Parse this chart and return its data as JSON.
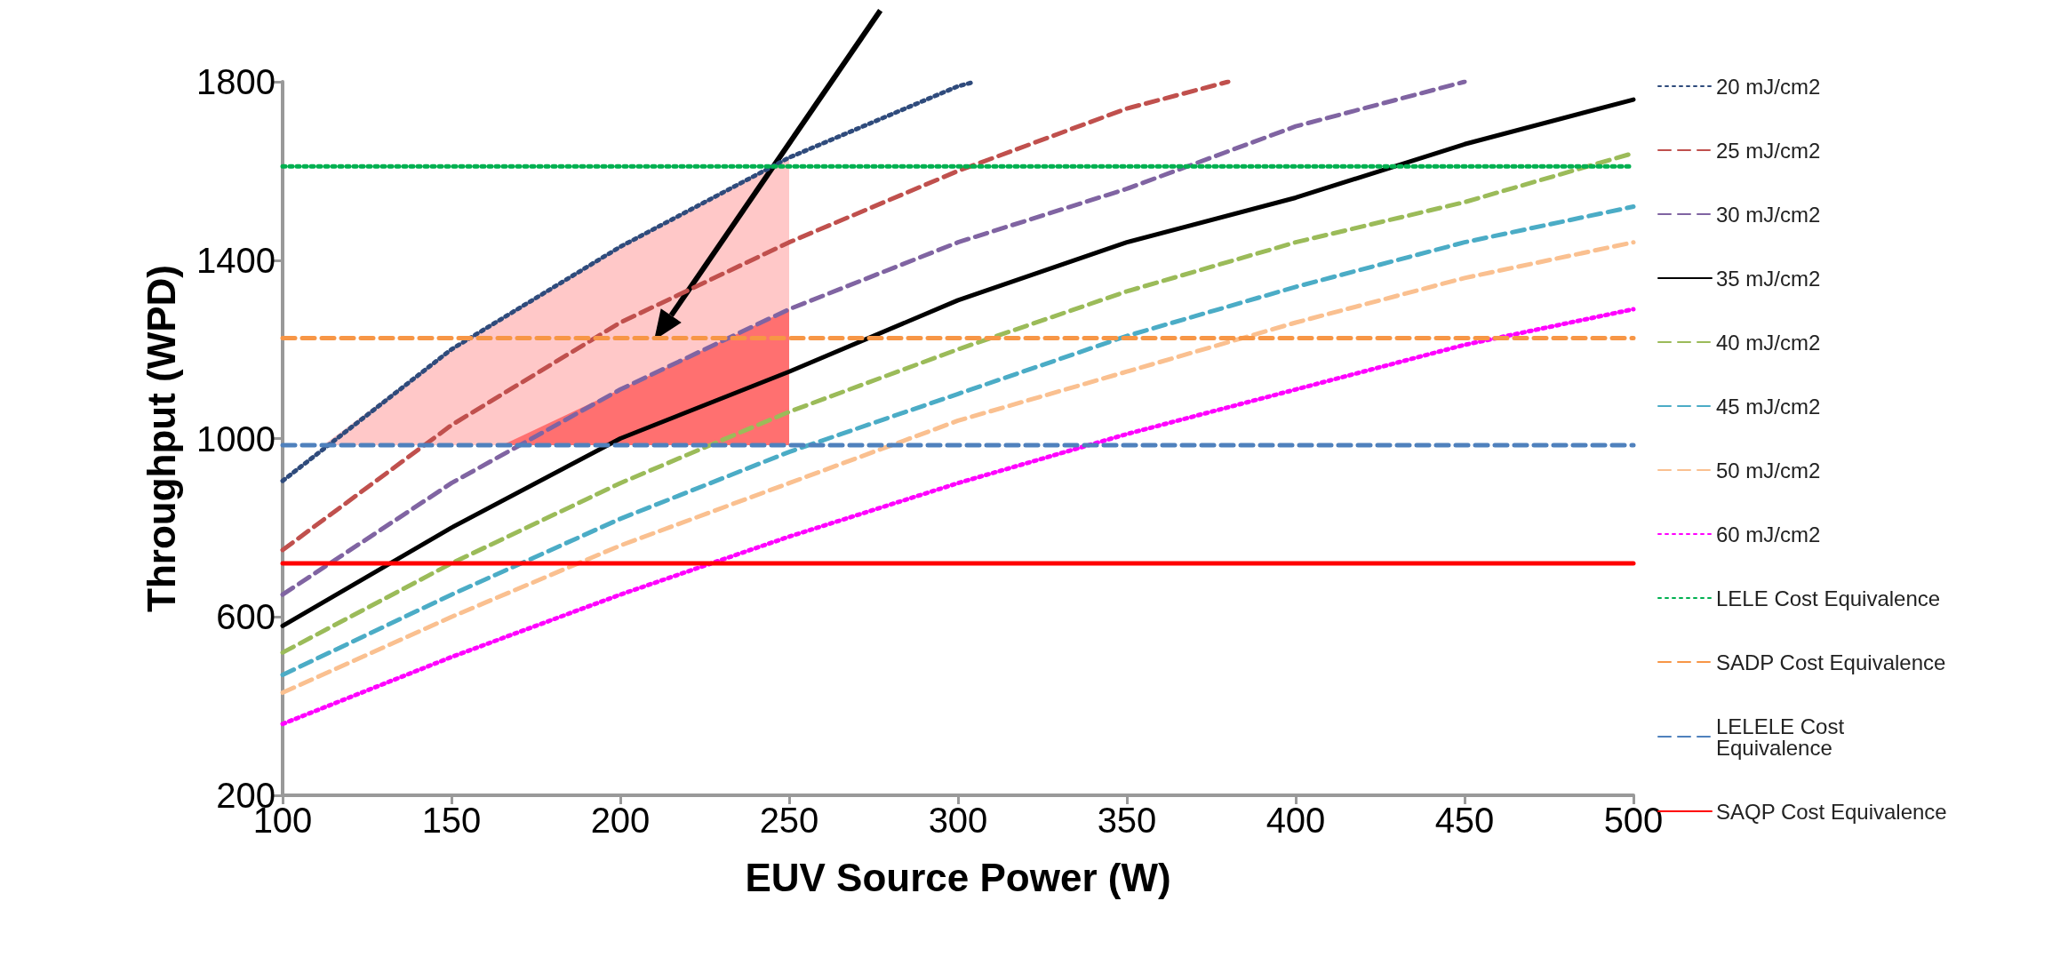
{
  "chart_data": {
    "type": "line",
    "xlabel": "EUV Source Power (W)",
    "ylabel": "Throughput (WPD)",
    "xlim": [
      100,
      500
    ],
    "xticks": [
      100,
      150,
      200,
      250,
      300,
      350,
      400,
      450,
      500
    ],
    "ylim": [
      200,
      1800
    ],
    "yticks": [
      200,
      600,
      1000,
      1400,
      1800
    ],
    "grid": false,
    "legend": "right",
    "marker": "none",
    "series": [
      {
        "name": "20 mJ/cm2",
        "color": "#2f4b7c",
        "line_style": "dotted",
        "x": [
          100,
          150,
          200,
          250,
          300,
          305
        ],
        "values": [
          905,
          1200,
          1430,
          1630,
          1790,
          1800
        ]
      },
      {
        "name": "25 mJ/cm2",
        "color": "#c0504d",
        "line_style": "dashed",
        "x": [
          100,
          150,
          200,
          250,
          300,
          350,
          380
        ],
        "values": [
          750,
          1030,
          1260,
          1440,
          1600,
          1740,
          1800
        ]
      },
      {
        "name": "30 mJ/cm2",
        "color": "#8064a2",
        "line_style": "dashed",
        "x": [
          100,
          150,
          200,
          250,
          300,
          350,
          400,
          450
        ],
        "values": [
          650,
          900,
          1110,
          1290,
          1440,
          1560,
          1700,
          1800
        ]
      },
      {
        "name": "35 mJ/cm2",
        "color": "#000000",
        "line_style": "solid",
        "x": [
          100,
          150,
          200,
          250,
          300,
          350,
          400,
          450,
          500
        ],
        "values": [
          580,
          800,
          1000,
          1150,
          1310,
          1440,
          1540,
          1660,
          1760
        ]
      },
      {
        "name": "40 mJ/cm2",
        "color": "#9bbb59",
        "line_style": "dashed",
        "x": [
          100,
          150,
          200,
          250,
          300,
          350,
          400,
          450,
          500
        ],
        "values": [
          520,
          720,
          900,
          1060,
          1200,
          1330,
          1440,
          1530,
          1640
        ]
      },
      {
        "name": "45 mJ/cm2",
        "color": "#4bacc6",
        "line_style": "dashed",
        "x": [
          100,
          150,
          200,
          250,
          300,
          350,
          400,
          450,
          500
        ],
        "values": [
          470,
          650,
          820,
          970,
          1100,
          1230,
          1340,
          1440,
          1520
        ]
      },
      {
        "name": "50 mJ/cm2",
        "color": "#fac090",
        "line_style": "dashed",
        "x": [
          100,
          150,
          200,
          250,
          300,
          350,
          400,
          450,
          500
        ],
        "values": [
          430,
          600,
          760,
          900,
          1040,
          1150,
          1260,
          1360,
          1440
        ]
      },
      {
        "name": "60 mJ/cm2",
        "color": "#ff00ff",
        "line_style": "dotted",
        "x": [
          100,
          150,
          200,
          250,
          300,
          350,
          400,
          450,
          500
        ],
        "values": [
          360,
          510,
          650,
          780,
          900,
          1010,
          1110,
          1210,
          1290
        ]
      },
      {
        "name": "LELE Cost Equivalence",
        "color": "#00b050",
        "line_style": "dotted",
        "x": [
          100,
          500
        ],
        "values": [
          1610,
          1610
        ]
      },
      {
        "name": "SADP Cost Equivalence",
        "color": "#f79646",
        "line_style": "dashed",
        "x": [
          100,
          500
        ],
        "values": [
          1225,
          1225
        ]
      },
      {
        "name": "LELELE Cost Equivalence",
        "color": "#4f81bd",
        "line_style": "dashed",
        "x": [
          100,
          500
        ],
        "values": [
          985,
          985
        ]
      },
      {
        "name": "SAQP Cost Equivalence",
        "color": "#ff0000",
        "line_style": "solid",
        "x": [
          100,
          500
        ],
        "values": [
          720,
          720
        ]
      }
    ]
  }
}
